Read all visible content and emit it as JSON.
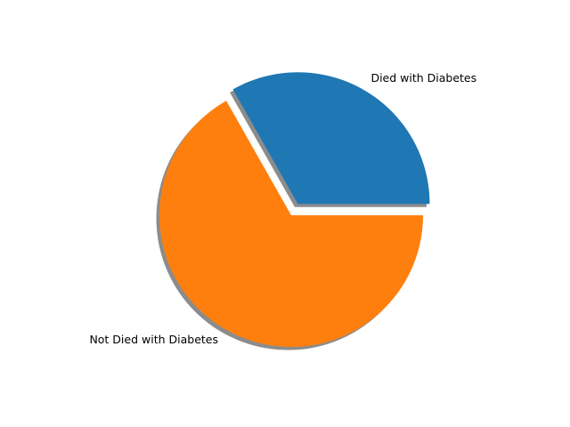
{
  "chart_data": {
    "type": "pie",
    "title": "",
    "slices": [
      {
        "label": "Died with Diabetes",
        "value": 33.2,
        "color": "#1f77b4",
        "exploded": true
      },
      {
        "label": "Not Died with Diabetes",
        "value": 66.8,
        "color": "#ff7f0e",
        "exploded": false
      }
    ],
    "shadow": true,
    "start_angle_deg": 0,
    "direction": "counterclockwise"
  }
}
